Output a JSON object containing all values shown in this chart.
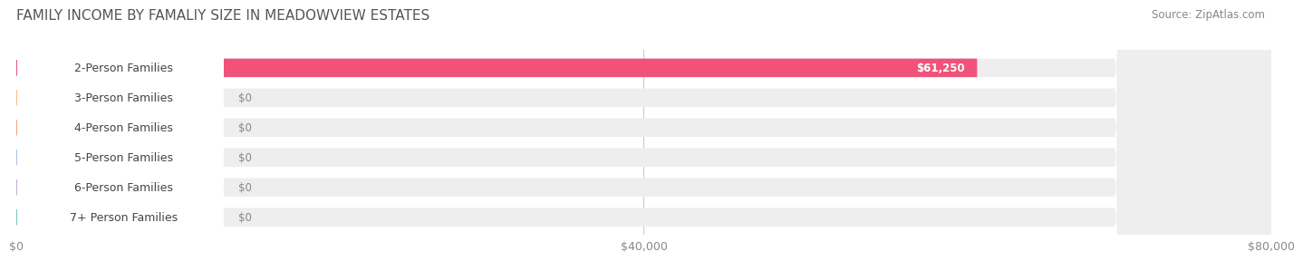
{
  "title": "FAMILY INCOME BY FAMALIY SIZE IN MEADOWVIEW ESTATES",
  "source": "Source: ZipAtlas.com",
  "categories": [
    "2-Person Families",
    "3-Person Families",
    "4-Person Families",
    "5-Person Families",
    "6-Person Families",
    "7+ Person Families"
  ],
  "values": [
    61250,
    0,
    0,
    0,
    0,
    0
  ],
  "bar_colors": [
    "#f0527a",
    "#f5c08a",
    "#f0a090",
    "#a8c4e0",
    "#c4a8d8",
    "#70c8c0"
  ],
  "label_colors": [
    "#f0527a",
    "#f5c08a",
    "#f0a090",
    "#a8c4e0",
    "#c4a8d8",
    "#70c8c0"
  ],
  "value_labels": [
    "$61,250",
    "$0",
    "$0",
    "$0",
    "$0",
    "$0"
  ],
  "xlim": [
    0,
    80000
  ],
  "xtick_values": [
    0,
    40000,
    80000
  ],
  "xtick_labels": [
    "$0",
    "$40,000",
    "$80,000"
  ],
  "background_color": "#ffffff",
  "bar_bg_color": "#eeeeee",
  "title_fontsize": 11,
  "source_fontsize": 8.5,
  "label_fontsize": 9,
  "value_fontsize": 8.5
}
